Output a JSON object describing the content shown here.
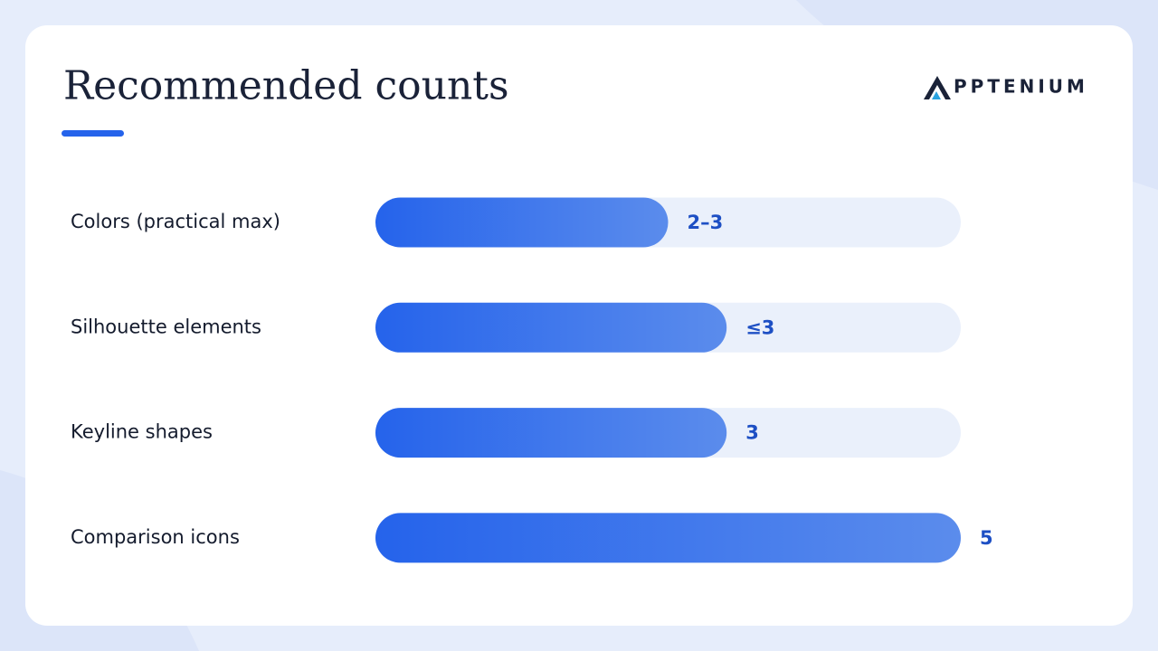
{
  "chart_data": {
    "type": "bar",
    "orientation": "horizontal",
    "title": "Recommended counts",
    "logo": "PPTENIUM",
    "categories": [
      "Colors (practical max)",
      "Silhouette elements",
      "Keyline shapes",
      "Comparison icons"
    ],
    "values": [
      2.5,
      3,
      3,
      5
    ],
    "value_labels": [
      "2–3",
      "≤3",
      "3",
      "5"
    ],
    "xlim": [
      0,
      5
    ],
    "color": "#2563eb"
  }
}
